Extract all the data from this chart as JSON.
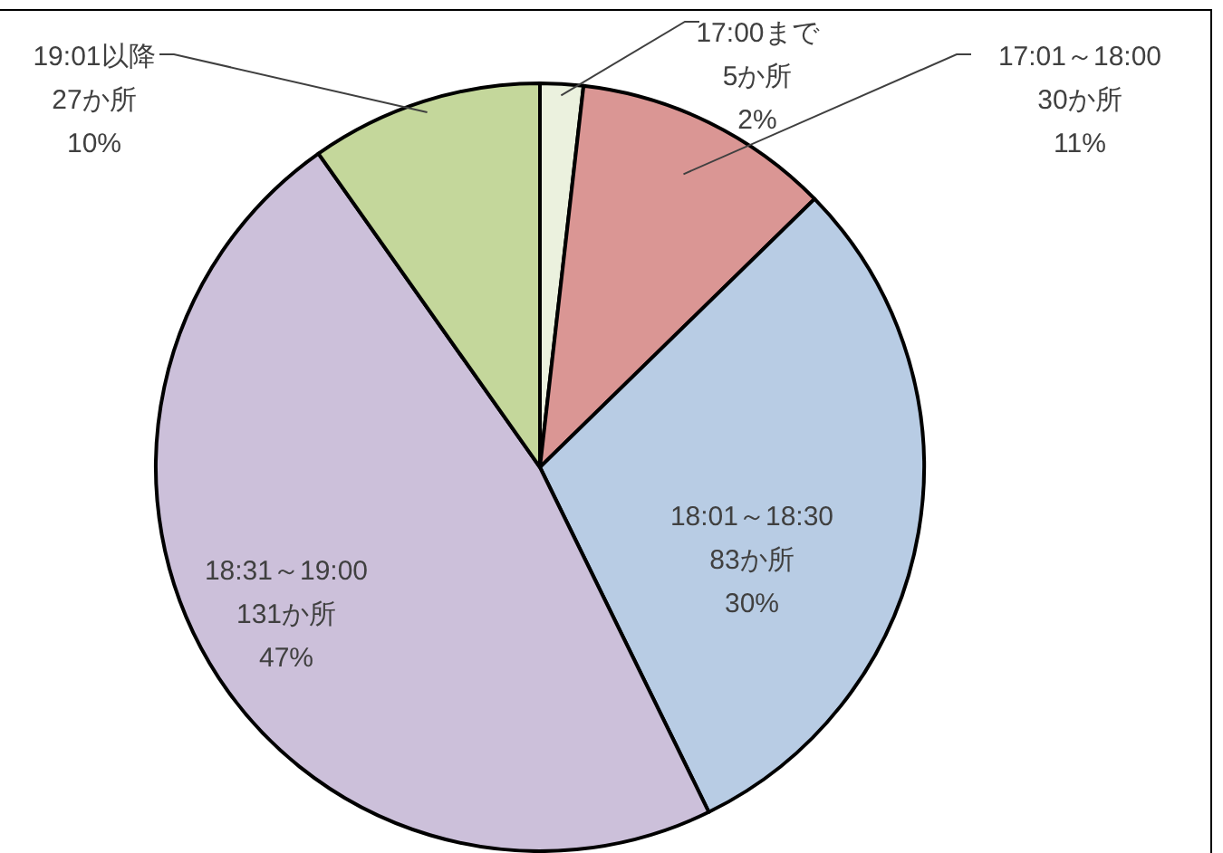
{
  "chart_data": {
    "type": "pie",
    "categories": [
      "17:00まで",
      "17:01～18:00",
      "18:01～18:30",
      "18:31～19:00",
      "19:01以降"
    ],
    "values": [
      5,
      30,
      83,
      131,
      27
    ],
    "value_labels": [
      "5か所\n2%",
      "30か所\n11%",
      "83か所\n30%",
      "131か所\n47%",
      "27か所\n10%"
    ],
    "colors": [
      "#ebf1de",
      "#da9694",
      "#b8cce4",
      "#ccc0da",
      "#c4d79b"
    ]
  }
}
